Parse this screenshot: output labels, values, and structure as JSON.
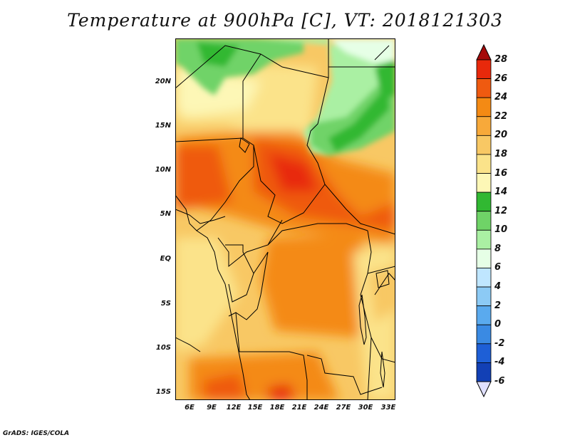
{
  "title": "Temperature at 900hPa [C], VT: 2018121303",
  "credit": "GrADS: IGES/COLA",
  "map": {
    "lat_labels": [
      "20N",
      "15N",
      "10N",
      "5N",
      "EQ",
      "5S",
      "10S",
      "15S"
    ],
    "lon_labels": [
      "6E",
      "9E",
      "12E",
      "15E",
      "18E",
      "21E",
      "24E",
      "27E",
      "30E",
      "33E"
    ],
    "lon_range": [
      4,
      34
    ],
    "lat_range": [
      -16,
      25
    ]
  },
  "colorbar": {
    "labels": [
      "28",
      "26",
      "24",
      "22",
      "20",
      "18",
      "16",
      "14",
      "12",
      "10",
      "8",
      "6",
      "4",
      "2",
      "0",
      "-2",
      "-4",
      "-6"
    ],
    "colors": [
      "#a50a0a",
      "#e8290b",
      "#ef5a10",
      "#f48a14",
      "#f7a93a",
      "#f8c864",
      "#fbe38a",
      "#fdf7b6",
      "#31b832",
      "#6fd367",
      "#aaf0a3",
      "#e6ffe6",
      "#bfe6ff",
      "#8ccaf5",
      "#5aaaee",
      "#3a8ae3",
      "#1e5fd6",
      "#1240b5",
      "#0a1f8a"
    ]
  }
}
